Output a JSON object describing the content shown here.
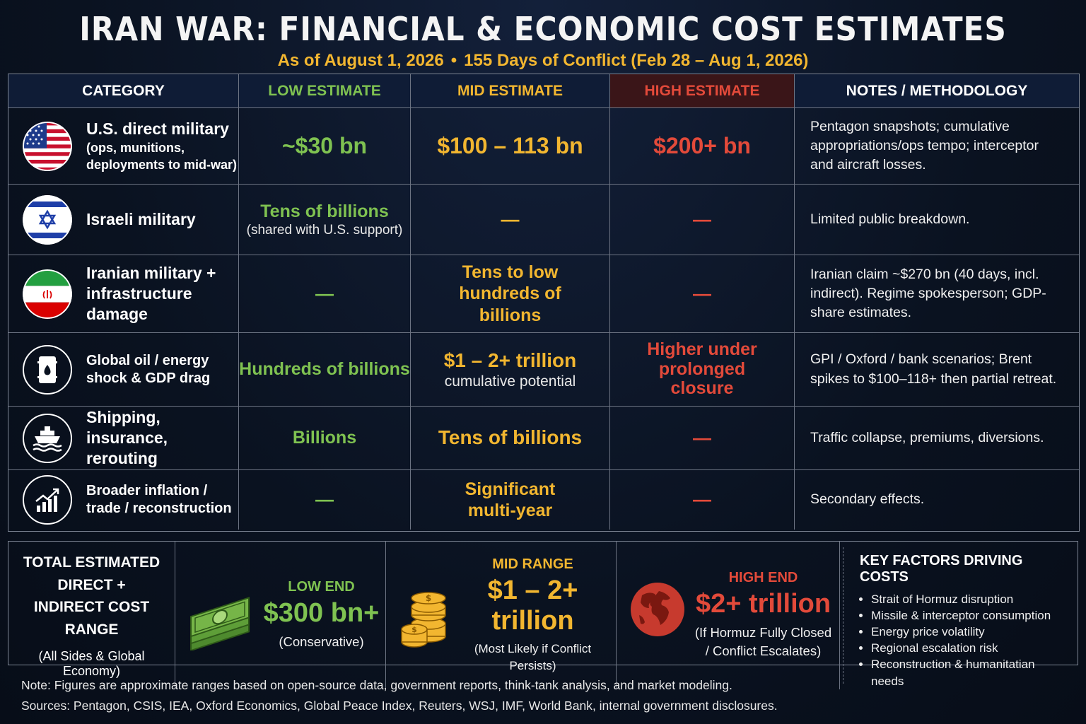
{
  "header": {
    "title": "IRAN WAR: FINANCIAL & ECONOMIC COST ESTIMATES",
    "subtitle_date": "As of August 1, 2026",
    "subtitle_sep": "•",
    "subtitle_days": "155 Days of Conflict (Feb 28 – Aug 1, 2026)"
  },
  "columns": [
    "CATEGORY",
    "LOW ESTIMATE",
    "MID ESTIMATE",
    "HIGH ESTIMATE",
    "NOTES / METHODOLOGY"
  ],
  "rows": [
    {
      "icon": "us-flag-icon",
      "label": "U.S. direct military",
      "label_sub": "(ops, munitions, deployments to mid-war)",
      "low": "~$30 bn",
      "low_sub": "",
      "mid": "$100 – 113 bn",
      "mid_sub": "",
      "high": "$200+ bn",
      "notes": "Pentagon snapshots; cumulative appropriations/ops tempo; interceptor and aircraft losses."
    },
    {
      "icon": "israel-flag-icon",
      "label": "Israeli military",
      "label_sub": "",
      "low": "Tens of billions",
      "low_sub": "(shared with U.S. support)",
      "mid": "—",
      "mid_sub": "",
      "high": "—",
      "notes": "Limited public breakdown."
    },
    {
      "icon": "iran-flag-icon",
      "label": "Iranian military + infrastructure damage",
      "label_sub": "",
      "low": "—",
      "low_sub": "",
      "mid": "Tens to low hundreds of billions",
      "mid_sub": "",
      "high": "—",
      "notes": "Iranian claim ~$270 bn (40 days, incl. indirect). Regime spokesperson; GDP-share estimates."
    },
    {
      "icon": "oil-barrel-icon",
      "label": "Global oil / energy shock & GDP drag",
      "label_sub": "",
      "low": "Hundreds of billions",
      "low_sub": "",
      "mid": "$1 – 2+ trillion",
      "mid_sub": "cumulative potential",
      "high": "Higher under prolonged closure",
      "notes": "GPI / Oxford / bank scenarios; Brent spikes to $100–118+ then partial retreat."
    },
    {
      "icon": "ship-icon",
      "label": "Shipping, insurance, rerouting",
      "label_sub": "",
      "low": "Billions",
      "low_sub": "",
      "mid": "Tens of billions",
      "mid_sub": "",
      "high": "—",
      "notes": "Traffic collapse, premiums, diversions."
    },
    {
      "icon": "rising-chart-icon",
      "label": "Broader inflation / trade / reconstruction",
      "label_sub": "",
      "low": "—",
      "low_sub": "",
      "mid": "Significant multi-year",
      "mid_sub": "",
      "high": "—",
      "notes": "Secondary effects."
    }
  ],
  "summary": {
    "total_title": "TOTAL ESTIMATED DIRECT + INDIRECT COST RANGE",
    "total_sub": "(All Sides & Global Economy)",
    "low": {
      "name": "LOW END",
      "value": "$300 bn+",
      "note": "(Conservative)",
      "icon": "cash-stack-icon"
    },
    "mid": {
      "name": "MID RANGE",
      "value": "$1 – 2+ trillion",
      "note": "(Most Likely if Conflict Persists)",
      "icon": "coin-stack-icon"
    },
    "high": {
      "name": "HIGH END",
      "value": "$2+ trillion",
      "note": "(If Hormuz Fully Closed / Conflict Escalates)",
      "icon": "globe-icon"
    },
    "factors_title": "KEY FACTORS DRIVING COSTS",
    "factors": [
      "Strait of Hormuz disruption",
      "Missile & interceptor consumption",
      "Energy price volatility",
      "Regional escalation risk",
      "Reconstruction & humanitatian needs"
    ]
  },
  "footer": {
    "note": "Note: Figures are approximate ranges based on open-source data, government reports, think-tank analysis, and market modeling.",
    "sources": "Sources: Pentagon, CSIS, IEA, Oxford Economics, Global Peace Index, Reuters, WSJ, IMF, World Bank, internal government disclosures."
  },
  "colors": {
    "low": "#7fc251",
    "mid": "#f2b630",
    "high": "#e34a3a",
    "background": "#0a1220"
  }
}
